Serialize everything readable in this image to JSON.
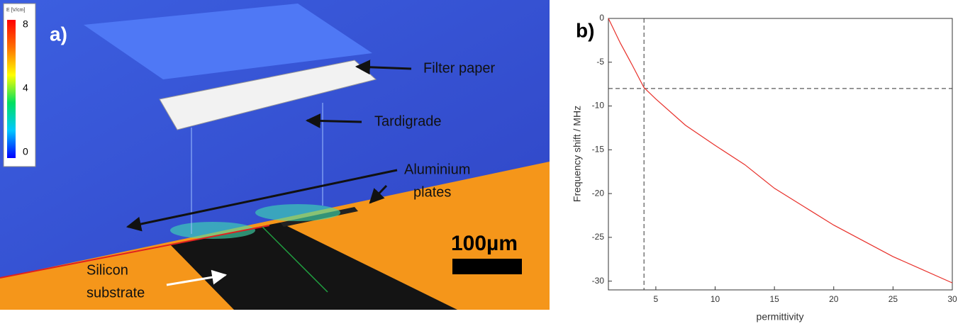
{
  "panel_a": {
    "label": "a)",
    "colorbar": {
      "title": "E [V/cm]",
      "range": [
        0,
        8
      ],
      "ticks": [
        8,
        4,
        0
      ],
      "colors": [
        "#0000ff",
        "#00c8ff",
        "#00e060",
        "#ffff00",
        "#ff7000",
        "#ff0000"
      ]
    },
    "annotations": {
      "filter": "Filter paper",
      "tardigrade": "Tardigrade",
      "plates": [
        "Aluminium",
        "plates"
      ],
      "substrate": [
        "Silicon",
        "substrate"
      ],
      "scale": "100µm"
    }
  },
  "chart_data": {
    "type": "line",
    "panel_label": "b)",
    "xlabel": "permittivity",
    "ylabel": "Frequency shift / MHz",
    "x": [
      1,
      2,
      3,
      4,
      5,
      7.5,
      10,
      12.5,
      15,
      17.5,
      20,
      22.5,
      25,
      27.5,
      30
    ],
    "values": [
      0,
      -2.8,
      -5.3,
      -7.9,
      -9.2,
      -12.2,
      -14.5,
      -16.7,
      -19.4,
      -21.5,
      -23.6,
      -25.4,
      -27.2,
      -28.7,
      -30.2
    ],
    "color": "#e8302a",
    "xlim": [
      1,
      30
    ],
    "ylim": [
      -31,
      0
    ],
    "xticks": [
      5,
      10,
      15,
      20,
      25,
      30
    ],
    "yticks": [
      0,
      -5,
      -10,
      -15,
      -20,
      -25,
      -30
    ],
    "vline": 4,
    "hline": -8
  }
}
